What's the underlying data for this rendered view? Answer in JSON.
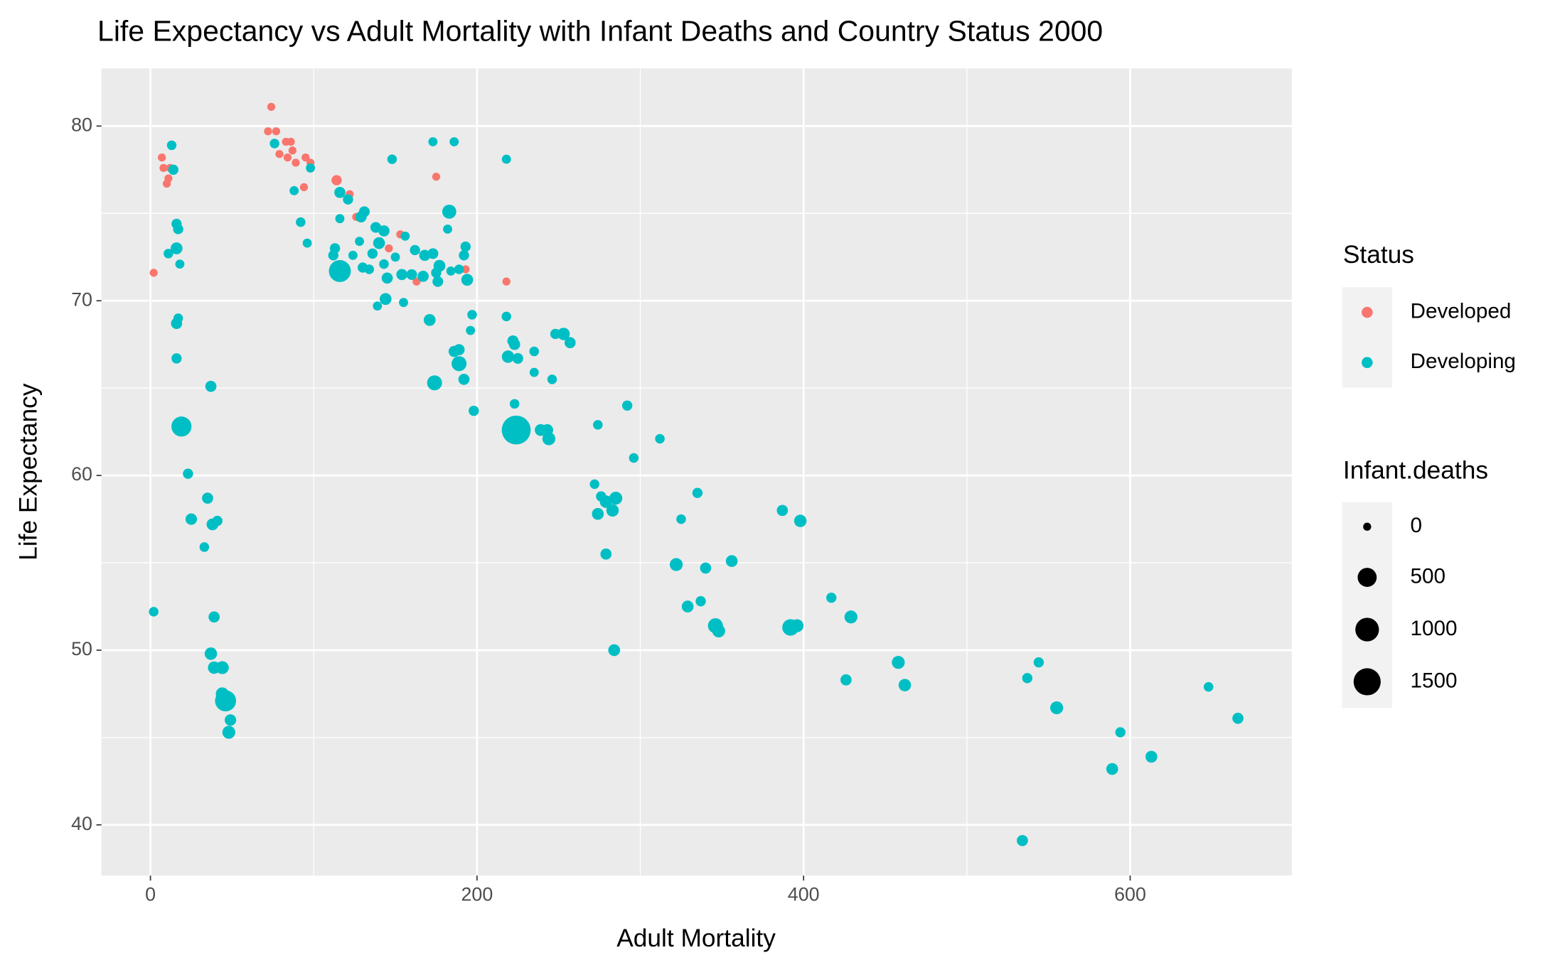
{
  "chart_data": {
    "type": "scatter",
    "title": "Life Expectancy vs Adult Mortality with Infant Deaths and Country Status 2000",
    "x_label": "Adult Mortality",
    "y_label": "Life Expectancy",
    "xlim": [
      -30,
      699
    ],
    "ylim": [
      37.1,
      83.3
    ],
    "xticks": [
      0,
      200,
      400,
      600
    ],
    "yticks": [
      40,
      50,
      60,
      70,
      80
    ],
    "grid": true,
    "legend_title": "Status",
    "size_legend": {
      "title": "Infant.deaths",
      "values": [
        0,
        500,
        1000,
        1500
      ]
    },
    "series": [
      {
        "name": "Developed",
        "color": "#F8766D",
        "x": [
          2,
          7,
          8,
          10,
          11,
          12,
          74,
          72,
          77,
          79,
          83,
          84,
          86,
          87,
          89,
          94,
          95,
          98,
          114,
          122,
          126,
          146,
          153,
          163,
          175,
          193,
          218
        ],
        "values": [
          71.6,
          78.2,
          77.6,
          76.7,
          77.0,
          77.6,
          81.1,
          79.7,
          79.7,
          78.4,
          79.1,
          78.2,
          79.1,
          78.6,
          77.9,
          76.5,
          78.2,
          77.9,
          76.9,
          76.1,
          74.8,
          73.0,
          73.8,
          71.1,
          77.1,
          71.8,
          71.1
        ],
        "sizes": [
          0,
          0,
          0,
          0,
          0,
          0,
          0,
          0,
          0,
          0,
          0,
          0,
          0,
          0,
          0,
          0,
          0,
          0,
          20,
          0,
          0,
          0,
          0,
          0,
          0,
          0,
          0
        ]
      },
      {
        "name": "Developing",
        "color": "#00BFC4",
        "x": [
          13,
          14,
          11,
          16,
          16,
          17,
          18,
          17,
          16,
          16,
          19,
          23,
          25,
          35,
          38,
          41,
          33,
          37,
          2,
          39,
          37,
          39,
          44,
          46,
          44,
          49,
          48,
          76,
          88,
          92,
          96,
          98,
          113,
          112,
          116,
          116,
          116,
          121,
          128,
          129,
          131,
          124,
          130,
          134,
          136,
          138,
          140,
          143,
          143,
          139,
          144,
          145,
          150,
          148,
          154,
          155,
          156,
          160,
          162,
          167,
          168,
          171,
          173,
          174,
          173,
          175,
          176,
          177,
          182,
          183,
          186,
          184,
          186,
          189,
          189,
          189,
          193,
          192,
          192,
          194,
          196,
          197,
          198,
          218,
          218,
          219,
          222,
          223,
          225,
          224,
          223,
          235,
          235,
          239,
          243,
          244,
          246,
          248,
          253,
          257,
          274,
          292,
          272,
          276,
          274,
          279,
          285,
          283,
          279,
          284,
          296,
          312,
          325,
          335,
          322,
          329,
          337,
          340,
          346,
          348,
          356,
          387,
          398,
          392,
          396,
          417,
          429,
          426,
          458,
          462,
          534,
          537,
          544,
          555,
          594,
          589,
          613,
          648,
          666
        ],
        "values": [
          78.9,
          77.5,
          72.7,
          73.0,
          74.4,
          74.1,
          72.1,
          69.0,
          68.7,
          66.7,
          62.8,
          60.1,
          57.5,
          58.7,
          57.2,
          57.4,
          55.9,
          65.1,
          52.2,
          51.9,
          49.8,
          49.0,
          49.0,
          47.1,
          47.5,
          46.0,
          45.3,
          79.0,
          76.3,
          74.5,
          73.3,
          77.6,
          73.0,
          72.6,
          71.7,
          74.7,
          76.2,
          75.8,
          73.4,
          74.8,
          75.1,
          72.6,
          71.9,
          71.8,
          72.7,
          74.2,
          73.3,
          74.0,
          72.1,
          69.7,
          70.1,
          71.3,
          72.5,
          78.1,
          71.5,
          69.9,
          73.7,
          71.5,
          72.9,
          71.4,
          72.6,
          68.9,
          72.7,
          65.3,
          79.1,
          71.6,
          71.1,
          72.0,
          74.1,
          75.1,
          79.1,
          71.7,
          67.1,
          67.2,
          66.4,
          71.8,
          73.1,
          72.6,
          65.5,
          71.2,
          68.3,
          69.2,
          63.7,
          78.1,
          69.1,
          66.8,
          67.7,
          67.5,
          66.7,
          62.6,
          64.1,
          67.1,
          65.9,
          62.6,
          62.6,
          62.1,
          65.5,
          68.1,
          68.1,
          67.6,
          62.9,
          64.0,
          59.5,
          58.8,
          57.8,
          58.5,
          58.7,
          58.0,
          55.5,
          50.0,
          61.0,
          62.1,
          57.5,
          59.0,
          54.9,
          52.5,
          52.8,
          54.7,
          51.4,
          51.1,
          55.1,
          58.0,
          57.4,
          51.3,
          51.4,
          53.0,
          51.9,
          48.3,
          49.3,
          48.0,
          39.1,
          48.4,
          49.3,
          46.7,
          45.3,
          43.2,
          43.9,
          47.9,
          46.1
        ],
        "sizes": [
          10,
          20,
          10,
          60,
          20,
          20,
          5,
          10,
          40,
          20,
          600,
          20,
          50,
          40,
          60,
          20,
          10,
          40,
          10,
          40,
          80,
          80,
          100,
          700,
          100,
          50,
          100,
          10,
          5,
          10,
          5,
          5,
          20,
          20,
          800,
          5,
          40,
          20,
          5,
          40,
          30,
          5,
          20,
          10,
          20,
          30,
          60,
          40,
          10,
          5,
          60,
          40,
          5,
          10,
          40,
          5,
          5,
          30,
          20,
          40,
          40,
          60,
          30,
          200,
          5,
          20,
          30,
          60,
          5,
          150,
          5,
          5,
          40,
          40,
          200,
          10,
          20,
          20,
          40,
          60,
          5,
          10,
          20,
          5,
          10,
          80,
          40,
          40,
          30,
          1800,
          10,
          10,
          5,
          60,
          60,
          100,
          10,
          20,
          80,
          40,
          10,
          20,
          10,
          20,
          60,
          80,
          100,
          80,
          40,
          60,
          10,
          10,
          10,
          20,
          100,
          60,
          20,
          40,
          200,
          100,
          60,
          40,
          80,
          300,
          100,
          20,
          100,
          40,
          100,
          80,
          40,
          20,
          20,
          100,
          20,
          60,
          60,
          10,
          40
        ]
      }
    ]
  }
}
